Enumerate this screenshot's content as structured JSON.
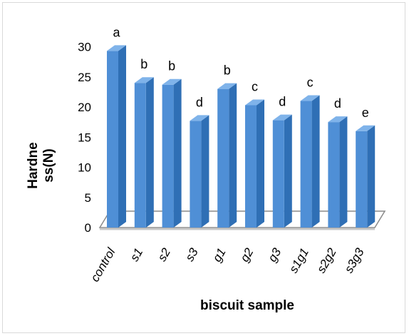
{
  "chart_data": {
    "type": "bar",
    "categories": [
      "control",
      "s1",
      "s2",
      "s3",
      "g1",
      "g2",
      "g3",
      "s1g1",
      "s2g2",
      "s3g3"
    ],
    "series": [
      {
        "values": [
          29.3,
          24.0,
          23.7,
          17.7,
          23.0,
          20.3,
          17.8,
          21.0,
          17.5,
          16.0
        ],
        "significance": [
          "a",
          "b",
          "b",
          "d",
          "b",
          "c",
          "d",
          "c",
          "d",
          "e"
        ]
      }
    ],
    "xlabel": "biscuit sample",
    "ylabel_lines": [
      "Hardne",
      "ss(N)"
    ],
    "ylim": [
      0,
      30
    ],
    "yticks": [
      "0",
      "5",
      "10",
      "15",
      "20",
      "25",
      "30"
    ],
    "grid": false,
    "style": "3d-column",
    "colors": {
      "bar_front": "#4f8fd6",
      "bar_side": "#2f6fb5",
      "bar_top": "#7fb3ea",
      "floor_line": "#8a8a8a"
    }
  }
}
